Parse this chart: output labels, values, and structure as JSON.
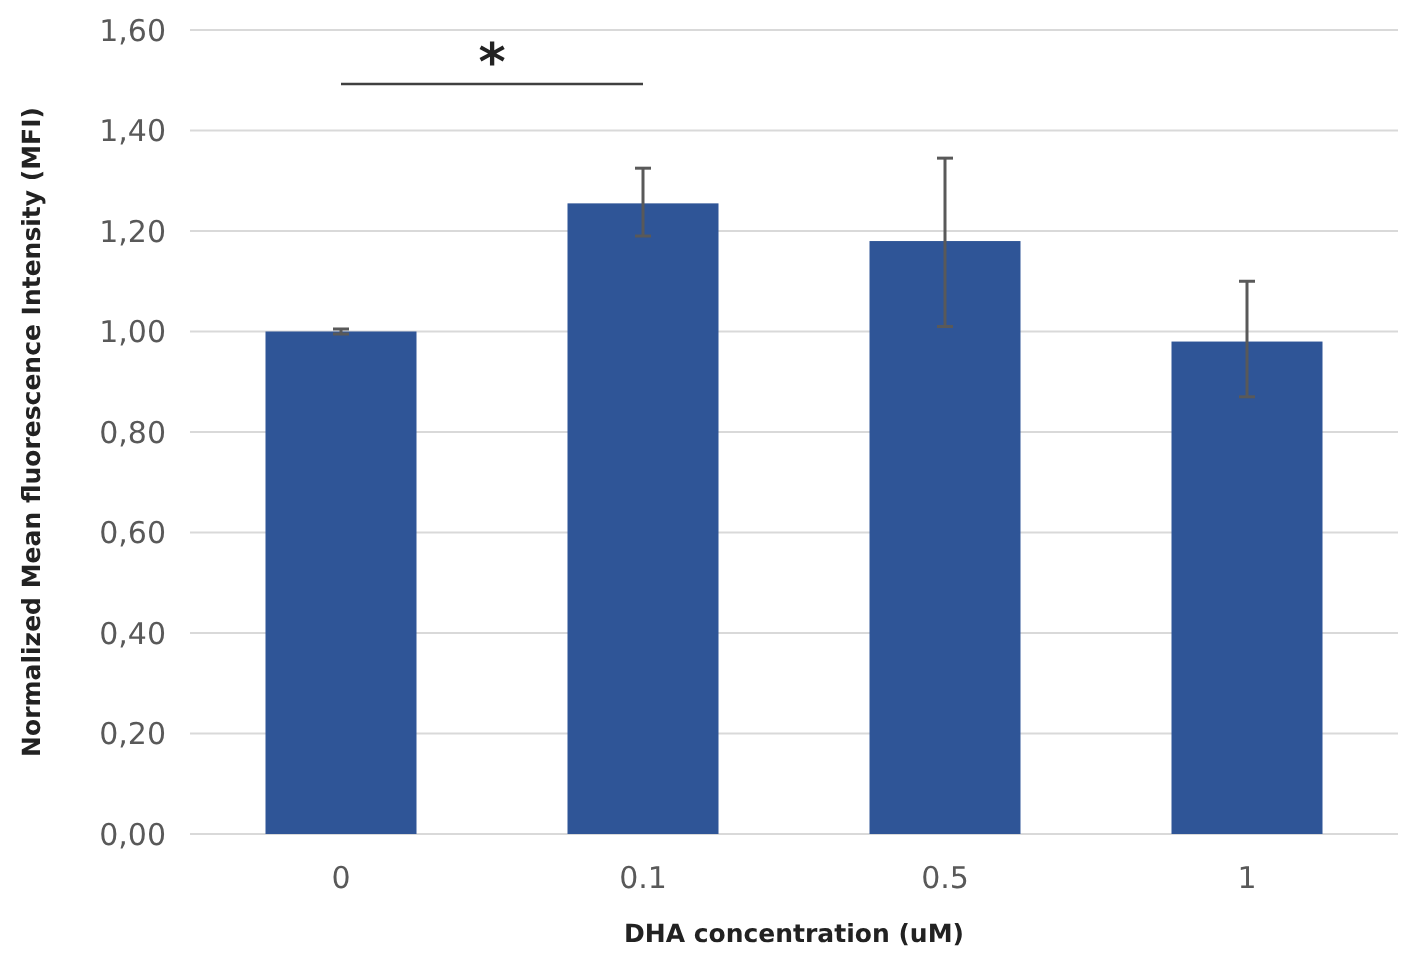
{
  "chart_data": {
    "type": "bar",
    "xlabel": "DHA concentration (uM)",
    "ylabel": "Normalized Mean fluorescence Intensity (MFI)",
    "categories": [
      "0",
      "0.1",
      "0.5",
      "1"
    ],
    "values": [
      1.0,
      1.255,
      1.18,
      0.98
    ],
    "errors": [
      [
        0.995,
        1.005
      ],
      [
        1.19,
        1.325
      ],
      [
        1.01,
        1.345
      ],
      [
        0.87,
        1.1
      ]
    ],
    "color": "#2f5597",
    "ylim": [
      0,
      1.6
    ],
    "yticks": [
      {
        "value": 0,
        "label": "0,00"
      },
      {
        "value": 0.2,
        "label": "0,20"
      },
      {
        "value": 0.4,
        "label": "0,40"
      },
      {
        "value": 0.6,
        "label": "0,60"
      },
      {
        "value": 0.8,
        "label": "0,80"
      },
      {
        "value": 1.0,
        "label": "1,00"
      },
      {
        "value": 1.2,
        "label": "1,20"
      },
      {
        "value": 1.4,
        "label": "1,40"
      },
      {
        "value": 1.6,
        "label": "1,60"
      }
    ],
    "grid": "y",
    "annotations": [
      "*"
    ]
  }
}
